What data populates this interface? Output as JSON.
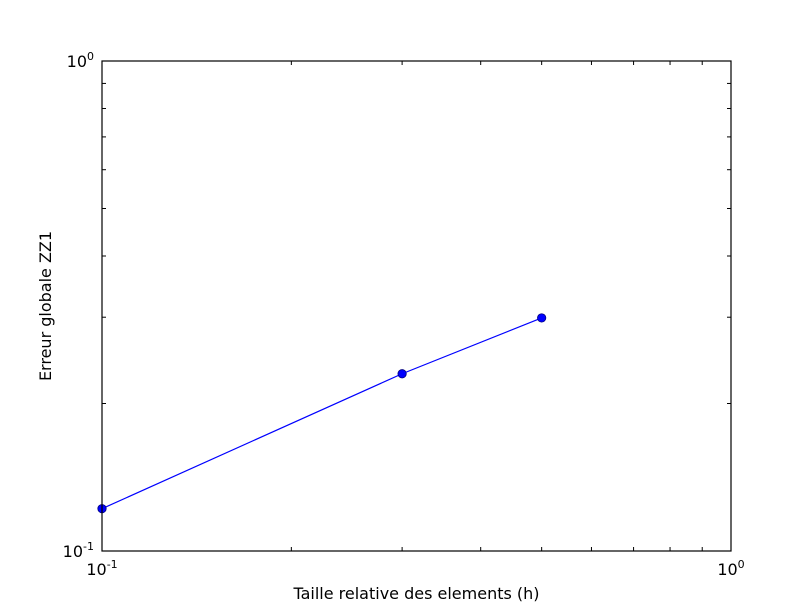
{
  "chart_data": {
    "type": "line",
    "title": "",
    "xlabel": "Taille relative des elements (h)",
    "ylabel": "Erreur globale ZZ1",
    "xscale": "log",
    "yscale": "log",
    "xlim": [
      0.1,
      1.0
    ],
    "ylim": [
      0.1,
      1.0
    ],
    "grid": false,
    "x_ticks": [
      {
        "base": "10",
        "exp": "-1"
      },
      {
        "base": "10",
        "exp": "0"
      }
    ],
    "y_ticks": [
      {
        "base": "10",
        "exp": "-1"
      },
      {
        "base": "10",
        "exp": "0"
      }
    ],
    "series": [
      {
        "color": "#0000ff",
        "marker": "circle",
        "points": [
          {
            "x": 0.1,
            "y": 0.122
          },
          {
            "x": 0.3,
            "y": 0.23
          },
          {
            "x": 0.5,
            "y": 0.299
          }
        ]
      }
    ]
  }
}
